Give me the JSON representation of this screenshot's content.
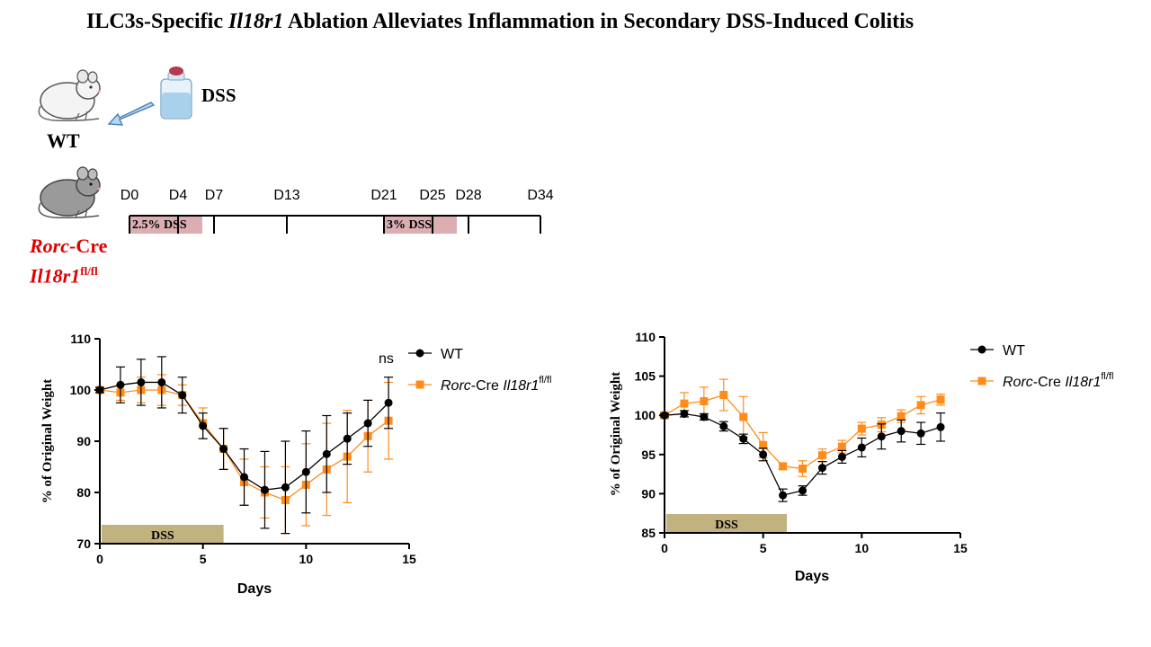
{
  "title": {
    "part1": "ILC3s-Specific ",
    "italic": "Il18r1",
    "part2": " Ablation Alleviates Inflammation in Secondary DSS-Induced Colitis"
  },
  "schematic": {
    "wt_label": "WT",
    "dss_label": "DSS",
    "rorc_label_italic": "Rorc",
    "rorc_label_rest": "-Cre",
    "il18r1_italic": "Il18r1",
    "il18r1_sup": "fl/fl",
    "timeline": {
      "days": [
        "D0",
        "D4",
        "D7",
        "D13",
        "D21",
        "D25",
        "D28",
        "D34"
      ],
      "dss1": "2.5% DSS",
      "dss2": "3% DSS"
    }
  },
  "colors": {
    "wt": "#000000",
    "ko": "#ff8c1a",
    "dss_box": "#c2b280",
    "timeline_dss": "#dcaeb2",
    "rorc_label": "#e00000"
  },
  "chart_data": [
    {
      "type": "line",
      "xlabel": "Days",
      "ylabel": "% of Original Weight",
      "xlim": [
        0,
        15
      ],
      "ylim": [
        70,
        110
      ],
      "xticks": [
        0,
        5,
        10,
        15
      ],
      "yticks": [
        70,
        80,
        90,
        100,
        110
      ],
      "dss_bar": {
        "label": "DSS",
        "from": 0,
        "to": 6
      },
      "annotation": "ns",
      "legend": {
        "wt": "WT",
        "ko_italic1": "Rorc",
        "ko_mid": "-Cre ",
        "ko_italic2": "Il18r1",
        "ko_sup": "fl/fl"
      },
      "series": [
        {
          "name": "WT",
          "marker": "circle",
          "x": [
            0,
            1,
            2,
            3,
            4,
            5,
            6,
            7,
            8,
            9,
            10,
            11,
            12,
            13,
            14
          ],
          "y": [
            100,
            101,
            101.5,
            101.5,
            99,
            93,
            88.5,
            83,
            80.5,
            81,
            84,
            87.5,
            90.5,
            93.5,
            97.5
          ],
          "err": [
            0.5,
            3.5,
            4.5,
            5,
            3.5,
            2.5,
            4,
            5.5,
            7.5,
            9,
            8,
            7.5,
            5,
            4.5,
            5
          ]
        },
        {
          "name": "Rorc-Cre Il18r1fl/fl",
          "marker": "square",
          "x": [
            0,
            1,
            2,
            3,
            4,
            5,
            6,
            7,
            8,
            9,
            10,
            11,
            12,
            13,
            14
          ],
          "y": [
            100,
            99.5,
            100,
            100,
            99,
            93.5,
            88.5,
            82,
            80,
            78.5,
            81.5,
            84.5,
            87,
            91,
            94
          ],
          "err": [
            0.5,
            1.5,
            2.5,
            3,
            2,
            3,
            4,
            4.5,
            5,
            6.5,
            8,
            9,
            9,
            7,
            7.5
          ]
        }
      ]
    },
    {
      "type": "line",
      "xlabel": "Days",
      "ylabel": "% of Original Weight",
      "xlim": [
        0,
        15
      ],
      "ylim": [
        85,
        110
      ],
      "xticks": [
        0,
        5,
        10,
        15
      ],
      "yticks": [
        85,
        90,
        95,
        100,
        105,
        110
      ],
      "dss_bar": {
        "label": "DSS",
        "from": 0,
        "to": 6.2
      },
      "legend": {
        "wt": "WT",
        "ko_italic1": "Rorc",
        "ko_mid": "-Cre ",
        "ko_italic2": "Il18r1",
        "ko_sup": "fl/fl"
      },
      "series": [
        {
          "name": "WT",
          "marker": "circle",
          "x": [
            0,
            1,
            2,
            3,
            4,
            5,
            6,
            7,
            8,
            9,
            10,
            11,
            12,
            13,
            14
          ],
          "y": [
            100,
            100.2,
            99.8,
            98.6,
            97,
            95,
            89.8,
            90.4,
            93.3,
            94.7,
            95.9,
            97.3,
            98,
            97.7,
            98.5
          ],
          "err": [
            0.2,
            0.4,
            0.4,
            0.6,
            0.6,
            0.8,
            0.8,
            0.6,
            0.8,
            0.8,
            1.2,
            1.6,
            1.4,
            1.4,
            1.8
          ]
        },
        {
          "name": "Rorc-Cre Il18r1fl/fl",
          "marker": "square",
          "x": [
            0,
            1,
            2,
            3,
            4,
            5,
            6,
            7,
            8,
            9,
            10,
            11,
            12,
            13,
            14
          ],
          "y": [
            100,
            101.5,
            101.8,
            102.6,
            99.8,
            96.2,
            93.5,
            93.2,
            94.9,
            96,
            98.3,
            98.8,
            99.9,
            101.3,
            102
          ],
          "err": [
            0.4,
            1.4,
            1.8,
            2,
            2.6,
            1.6,
            0.4,
            1,
            0.8,
            0.8,
            0.8,
            0.9,
            0.8,
            1.1,
            0.7
          ]
        }
      ]
    }
  ]
}
